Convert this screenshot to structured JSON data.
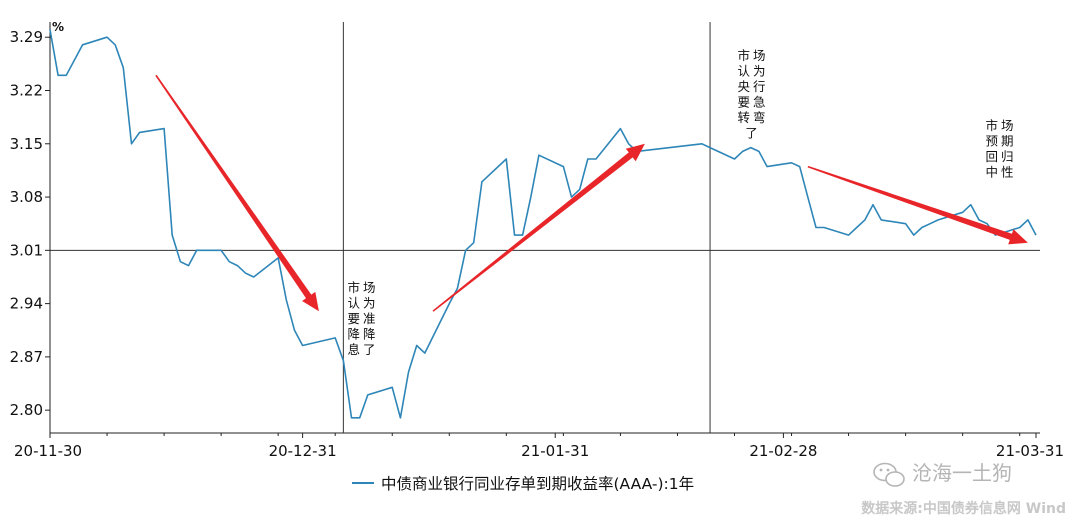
{
  "chart_data": {
    "type": "line",
    "unit": "%",
    "x_ticks": [
      "20-11-30",
      "20-12-31",
      "21-01-31",
      "21-02-28",
      "21-03-31"
    ],
    "ylim": [
      2.77,
      3.31
    ],
    "y_ticks": [
      2.8,
      2.87,
      2.94,
      3.01,
      3.08,
      3.15,
      3.22,
      3.29
    ],
    "reference_line": 3.01,
    "series": [
      {
        "name": "中债商业银行同业存单到期收益率(AAA-):1年",
        "color": "#2e86b8",
        "x": [
          "2020-11-30",
          "2020-12-01",
          "2020-12-02",
          "2020-12-04",
          "2020-12-07",
          "2020-12-08",
          "2020-12-09",
          "2020-12-10",
          "2020-12-11",
          "2020-12-14",
          "2020-12-15",
          "2020-12-16",
          "2020-12-17",
          "2020-12-18",
          "2020-12-21",
          "2020-12-22",
          "2020-12-23",
          "2020-12-24",
          "2020-12-25",
          "2020-12-28",
          "2020-12-29",
          "2020-12-30",
          "2020-12-31",
          "2021-01-04",
          "2021-01-05",
          "2021-01-06",
          "2021-01-07",
          "2021-01-08",
          "2021-01-11",
          "2021-01-12",
          "2021-01-13",
          "2021-01-14",
          "2021-01-15",
          "2021-01-18",
          "2021-01-19",
          "2021-01-20",
          "2021-01-21",
          "2021-01-22",
          "2021-01-25",
          "2021-01-26",
          "2021-01-27",
          "2021-01-28",
          "2021-01-29",
          "2021-02-01",
          "2021-02-02",
          "2021-02-03",
          "2021-02-04",
          "2021-02-05",
          "2021-02-08",
          "2021-02-09",
          "2021-02-10",
          "2021-02-18",
          "2021-02-19",
          "2021-02-22",
          "2021-02-23",
          "2021-02-24",
          "2021-02-25",
          "2021-02-26",
          "2021-03-01",
          "2021-03-02",
          "2021-03-03",
          "2021-03-04",
          "2021-03-05",
          "2021-03-08",
          "2021-03-09",
          "2021-03-10",
          "2021-03-11",
          "2021-03-12",
          "2021-03-15",
          "2021-03-16",
          "2021-03-17",
          "2021-03-18",
          "2021-03-19",
          "2021-03-22",
          "2021-03-23",
          "2021-03-24",
          "2021-03-25",
          "2021-03-26",
          "2021-03-29",
          "2021-03-30",
          "2021-03-31"
        ],
        "values": [
          3.3,
          3.24,
          3.24,
          3.28,
          3.29,
          3.28,
          3.25,
          3.15,
          3.165,
          3.17,
          3.03,
          2.995,
          2.99,
          3.01,
          3.01,
          2.995,
          2.99,
          2.98,
          2.975,
          3.0,
          2.945,
          2.905,
          2.885,
          2.895,
          2.865,
          2.79,
          2.79,
          2.82,
          2.83,
          2.79,
          2.85,
          2.885,
          2.875,
          2.94,
          2.96,
          3.01,
          3.02,
          3.1,
          3.13,
          3.03,
          3.03,
          3.08,
          3.135,
          3.12,
          3.08,
          3.09,
          3.13,
          3.13,
          3.17,
          3.15,
          3.14,
          3.15,
          3.145,
          3.13,
          3.14,
          3.145,
          3.14,
          3.12,
          3.125,
          3.12,
          3.08,
          3.04,
          3.04,
          3.03,
          3.04,
          3.05,
          3.07,
          3.05,
          3.045,
          3.03,
          3.04,
          3.045,
          3.05,
          3.06,
          3.07,
          3.05,
          3.045,
          3.03,
          3.04,
          3.05,
          3.03
        ]
      }
    ],
    "vertical_markers": [
      "2021-01-05",
      "2021-02-19"
    ],
    "annotations": [
      {
        "lines": [
          "市场",
          "认为",
          "要准",
          "降降",
          "息了"
        ]
      },
      {
        "lines": [
          "市场",
          "认为",
          "央行",
          "要急",
          "转弯",
          "了"
        ]
      },
      {
        "lines": [
          "市场",
          "预期",
          "回归",
          "中性"
        ]
      }
    ],
    "arrows": [
      {
        "from": [
          "2020-12-13",
          3.24
        ],
        "to": [
          "2021-01-02",
          2.93
        ]
      },
      {
        "from": [
          "2021-01-16",
          2.93
        ],
        "to": [
          "2021-02-11",
          3.15
        ]
      },
      {
        "from": [
          "2021-03-03",
          3.12
        ],
        "to": [
          "2021-03-30",
          3.02
        ]
      }
    ],
    "legend_position": "bottom",
    "grid": false
  },
  "watermark": "沧海一土狗",
  "source": "数据来源:中国债券信息网 Wind"
}
